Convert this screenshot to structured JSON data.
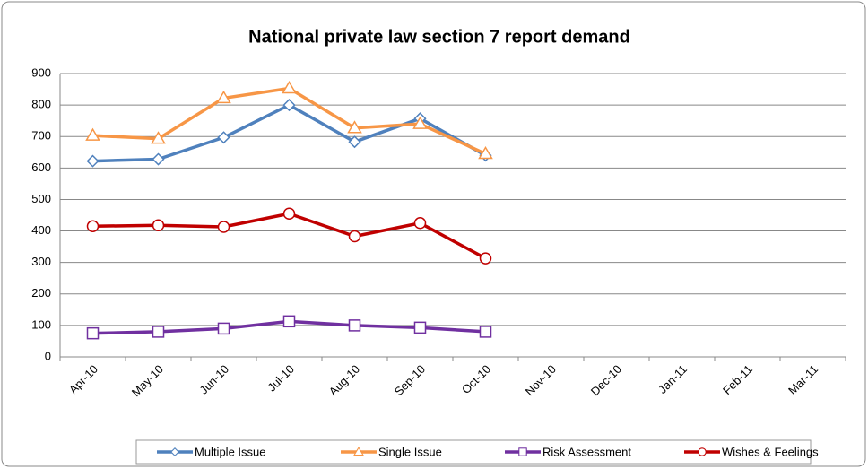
{
  "chart_data": {
    "type": "line",
    "title": "National private law section 7 report demand",
    "categories": [
      "Apr-10",
      "May-10",
      "Jun-10",
      "Jul-10",
      "Aug-10",
      "Sep-10",
      "Oct-10",
      "Nov-10",
      "Dec-10",
      "Jan-11",
      "Feb-11",
      "Mar-11"
    ],
    "series": [
      {
        "name": "Multiple Issue",
        "color": "#4f81bd",
        "marker": "diamond",
        "values": [
          622,
          628,
          697,
          800,
          683,
          757,
          640,
          null,
          null,
          null,
          null,
          null
        ]
      },
      {
        "name": "Single Issue",
        "color": "#f79646",
        "marker": "triangle",
        "values": [
          703,
          693,
          822,
          853,
          727,
          740,
          645,
          null,
          null,
          null,
          null,
          null
        ]
      },
      {
        "name": "Risk Assessment",
        "color": "#7030a0",
        "marker": "square",
        "values": [
          75,
          80,
          90,
          113,
          100,
          93,
          80,
          null,
          null,
          null,
          null,
          null
        ]
      },
      {
        "name": "Wishes & Feelings",
        "color": "#c00000",
        "marker": "circle",
        "values": [
          415,
          418,
          413,
          455,
          383,
          425,
          313,
          null,
          null,
          null,
          null,
          null
        ]
      }
    ],
    "ylim": [
      0,
      900
    ],
    "yticks": [
      0,
      100,
      200,
      300,
      400,
      500,
      600,
      700,
      800,
      900
    ],
    "grid": true,
    "legend": "bottom"
  }
}
